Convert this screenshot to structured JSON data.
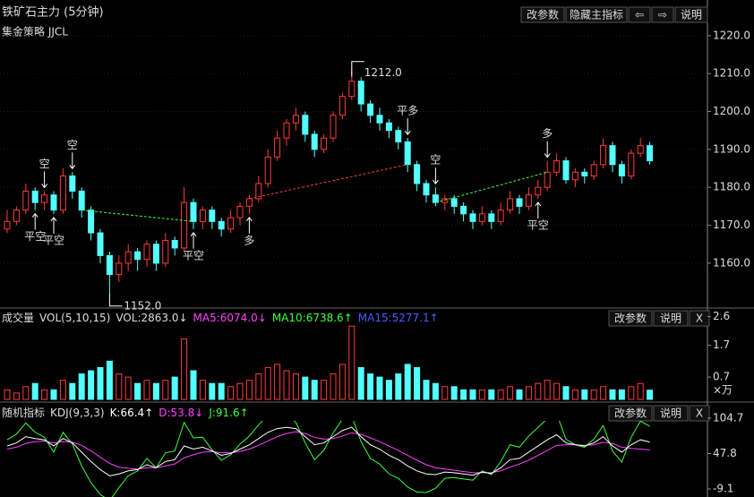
{
  "ui": {
    "title": "铁矿石主力 (5分钟)",
    "buttons": [
      "改参数",
      "隐藏主指标",
      "⇦",
      "⇨",
      "说明"
    ],
    "strategy": "集金策略 JJCL",
    "vol_buttons": [
      "改参数",
      "说明",
      "X"
    ],
    "kdj_buttons": [
      "改参数",
      "说明",
      "X"
    ]
  },
  "chart_data": [
    {
      "type": "candlestick",
      "up_color": "#ff3a3a",
      "down_color": "#54ffff",
      "ylim": [
        1148.4,
        1222.8
      ],
      "yticks": [
        {
          "value": 1220,
          "label": "1220.0"
        },
        {
          "value": 1210,
          "label": "1210.0"
        },
        {
          "value": 1200,
          "label": "1200.0"
        },
        {
          "value": 1190,
          "label": "1190.0"
        },
        {
          "value": 1180,
          "label": "1180.0"
        },
        {
          "value": 1170,
          "label": "1170.0"
        },
        {
          "value": 1160,
          "label": "1160.0"
        }
      ],
      "grid": true,
      "high_label": "1212.0",
      "low_label": "1152.0",
      "signals": [
        {
          "label": "空",
          "color": "#3cff3c"
        },
        {
          "label": "平空",
          "color": "#ff3a3a"
        },
        {
          "label": "平空",
          "color": "#ff3a3a"
        },
        {
          "label": "空",
          "color": "#3cff3c"
        },
        {
          "label": "平空",
          "color": "#ff3a3a"
        },
        {
          "label": "多",
          "color": "#ff3a3a"
        },
        {
          "label": "平多",
          "color": "#3cff3c"
        },
        {
          "label": "空",
          "color": "#3cff3c"
        },
        {
          "label": "多",
          "color": "#ff3a3a"
        },
        {
          "label": "平空",
          "color": "#ff3a3a"
        }
      ],
      "ohlc": [
        [
          1169,
          1174,
          1168,
          1171
        ],
        [
          1171,
          1175,
          1170,
          1174
        ],
        [
          1174,
          1181,
          1173,
          1179
        ],
        [
          1179,
          1180,
          1174,
          1176
        ],
        [
          1176,
          1179,
          1174,
          1178
        ],
        [
          1178,
          1179,
          1173,
          1174
        ],
        [
          1174,
          1185,
          1173,
          1183
        ],
        [
          1183,
          1184,
          1177,
          1179
        ],
        [
          1179,
          1180,
          1172,
          1174
        ],
        [
          1174,
          1175,
          1166,
          1168
        ],
        [
          1168,
          1169,
          1160,
          1162
        ],
        [
          1162,
          1163,
          1152,
          1157
        ],
        [
          1157,
          1162,
          1155,
          1160
        ],
        [
          1160,
          1165,
          1158,
          1163
        ],
        [
          1163,
          1164,
          1158,
          1161
        ],
        [
          1161,
          1166,
          1159,
          1165
        ],
        [
          1165,
          1166,
          1158,
          1160
        ],
        [
          1160,
          1168,
          1159,
          1166
        ],
        [
          1166,
          1167,
          1162,
          1164
        ],
        [
          1164,
          1180,
          1163,
          1176
        ],
        [
          1176,
          1177,
          1169,
          1171
        ],
        [
          1171,
          1175,
          1169,
          1174
        ],
        [
          1174,
          1175,
          1169,
          1171
        ],
        [
          1171,
          1172,
          1167,
          1169
        ],
        [
          1169,
          1174,
          1168,
          1172
        ],
        [
          1172,
          1176,
          1170,
          1175
        ],
        [
          1175,
          1178,
          1173,
          1177
        ],
        [
          1177,
          1183,
          1176,
          1181
        ],
        [
          1181,
          1190,
          1180,
          1188
        ],
        [
          1188,
          1195,
          1187,
          1193
        ],
        [
          1193,
          1198,
          1191,
          1197
        ],
        [
          1197,
          1201,
          1195,
          1199
        ],
        [
          1199,
          1200,
          1192,
          1194
        ],
        [
          1194,
          1195,
          1188,
          1190
        ],
        [
          1190,
          1194,
          1189,
          1193
        ],
        [
          1193,
          1200,
          1192,
          1199
        ],
        [
          1199,
          1205,
          1198,
          1204
        ],
        [
          1204,
          1212,
          1203,
          1208
        ],
        [
          1208,
          1209,
          1200,
          1202
        ],
        [
          1202,
          1203,
          1197,
          1199
        ],
        [
          1199,
          1201,
          1195,
          1197
        ],
        [
          1197,
          1198,
          1193,
          1195
        ],
        [
          1195,
          1196,
          1190,
          1192
        ],
        [
          1192,
          1193,
          1184,
          1186
        ],
        [
          1186,
          1187,
          1179,
          1181
        ],
        [
          1181,
          1182,
          1176,
          1178
        ],
        [
          1178,
          1180,
          1175,
          1176
        ],
        [
          1176,
          1178,
          1174,
          1177
        ],
        [
          1177,
          1178,
          1173,
          1175
        ],
        [
          1175,
          1176,
          1171,
          1173
        ],
        [
          1173,
          1174,
          1169,
          1171
        ],
        [
          1171,
          1175,
          1170,
          1173
        ],
        [
          1173,
          1174,
          1169,
          1171
        ],
        [
          1171,
          1176,
          1170,
          1174
        ],
        [
          1174,
          1179,
          1173,
          1177
        ],
        [
          1177,
          1178,
          1173,
          1175
        ],
        [
          1175,
          1180,
          1174,
          1178
        ],
        [
          1178,
          1182,
          1177,
          1180
        ],
        [
          1180,
          1187,
          1179,
          1184
        ],
        [
          1184,
          1189,
          1183,
          1187
        ],
        [
          1187,
          1188,
          1181,
          1182
        ],
        [
          1182,
          1185,
          1180,
          1184
        ],
        [
          1184,
          1185,
          1181,
          1183
        ],
        [
          1183,
          1187,
          1182,
          1186
        ],
        [
          1186,
          1193,
          1185,
          1191
        ],
        [
          1191,
          1192,
          1184,
          1186
        ],
        [
          1186,
          1187,
          1181,
          1183
        ],
        [
          1183,
          1190,
          1182,
          1189
        ],
        [
          1189,
          1193,
          1188,
          1191
        ],
        [
          1191,
          1192,
          1186,
          1187
        ]
      ]
    },
    {
      "type": "bar",
      "title": "成交量",
      "legend": [
        "VOL(5,10,15)",
        "VOL:2863.0↓",
        "MA5:6074.0↓",
        "MA10:6738.6↑",
        "MA15:5277.1↑"
      ],
      "legend_colors": [
        "#dddddd",
        "#dddddd",
        "#ff40ff",
        "#3cff3c",
        "#4a5cff"
      ],
      "unit": "×万",
      "ylim": [
        0,
        2.7
      ],
      "yticks": [
        2.6,
        1.7,
        0.7
      ],
      "values": [
        0.3,
        0.2,
        0.4,
        0.5,
        0.3,
        0.3,
        0.6,
        0.5,
        0.8,
        0.9,
        1.0,
        1.2,
        0.8,
        0.7,
        0.5,
        0.6,
        0.5,
        0.6,
        0.7,
        1.9,
        0.9,
        0.6,
        0.5,
        0.5,
        0.4,
        0.5,
        0.6,
        0.8,
        1.0,
        1.1,
        0.9,
        0.8,
        0.7,
        0.6,
        0.6,
        0.8,
        1.1,
        2.3,
        1.0,
        0.8,
        0.7,
        0.6,
        0.8,
        1.1,
        1.0,
        0.6,
        0.5,
        0.4,
        0.4,
        0.3,
        0.3,
        0.3,
        0.3,
        0.3,
        0.4,
        0.3,
        0.4,
        0.5,
        0.6,
        0.5,
        0.4,
        0.3,
        0.3,
        0.3,
        0.4,
        0.3,
        0.3,
        0.4,
        0.5,
        0.29
      ]
    },
    {
      "type": "line",
      "title": "随机指标",
      "legend": "KDJ(9,3,3)",
      "ylim": [
        -9.1,
        104.7
      ],
      "yticks": [
        104.7,
        47.8,
        -9.1
      ],
      "series": [
        {
          "name": "K:66.4↑",
          "color": "#ffffff",
          "values": [
            60,
            65,
            75,
            72,
            70,
            60,
            72,
            65,
            50,
            35,
            22,
            12,
            15,
            20,
            22,
            30,
            25,
            35,
            38,
            60,
            55,
            58,
            52,
            45,
            48,
            55,
            62,
            72,
            82,
            88,
            90,
            88,
            75,
            62,
            65,
            75,
            85,
            90,
            75,
            62,
            55,
            45,
            38,
            28,
            20,
            15,
            14,
            18,
            17,
            15,
            13,
            18,
            16,
            25,
            38,
            40,
            50,
            60,
            70,
            78,
            65,
            62,
            60,
            65,
            75,
            60,
            50,
            62,
            70,
            66.4
          ]
        },
        {
          "name": "D:53.8↓",
          "color": "#ff40ff",
          "values": [
            55,
            58,
            64,
            67,
            68,
            65,
            67,
            66,
            61,
            52,
            42,
            32,
            26,
            24,
            23,
            25,
            25,
            28,
            31,
            41,
            46,
            50,
            51,
            49,
            49,
            51,
            55,
            61,
            68,
            75,
            80,
            83,
            80,
            74,
            71,
            72,
            76,
            81,
            79,
            73,
            67,
            60,
            53,
            45,
            37,
            30,
            25,
            23,
            21,
            19,
            17,
            17,
            17,
            20,
            26,
            31,
            37,
            45,
            53,
            61,
            62,
            62,
            61,
            62,
            66,
            64,
            58,
            56,
            55,
            53.8
          ]
        },
        {
          "name": "J:91.6↑",
          "color": "#3cff3c",
          "values": [
            70,
            79,
            97,
            82,
            74,
            50,
            82,
            63,
            28,
            1,
            -18,
            -28,
            -7,
            12,
            20,
            40,
            25,
            49,
            52,
            98,
            73,
            74,
            54,
            37,
            46,
            63,
            76,
            94,
            110,
            114,
            110,
            98,
            65,
            38,
            53,
            81,
            103,
            108,
            67,
            40,
            31,
            15,
            8,
            -6,
            -14,
            -15,
            -8,
            8,
            9,
            7,
            5,
            20,
            14,
            35,
            62,
            58,
            76,
            90,
            104,
            112,
            71,
            62,
            58,
            71,
            93,
            52,
            34,
            74,
            100,
            91.6
          ]
        }
      ]
    }
  ]
}
